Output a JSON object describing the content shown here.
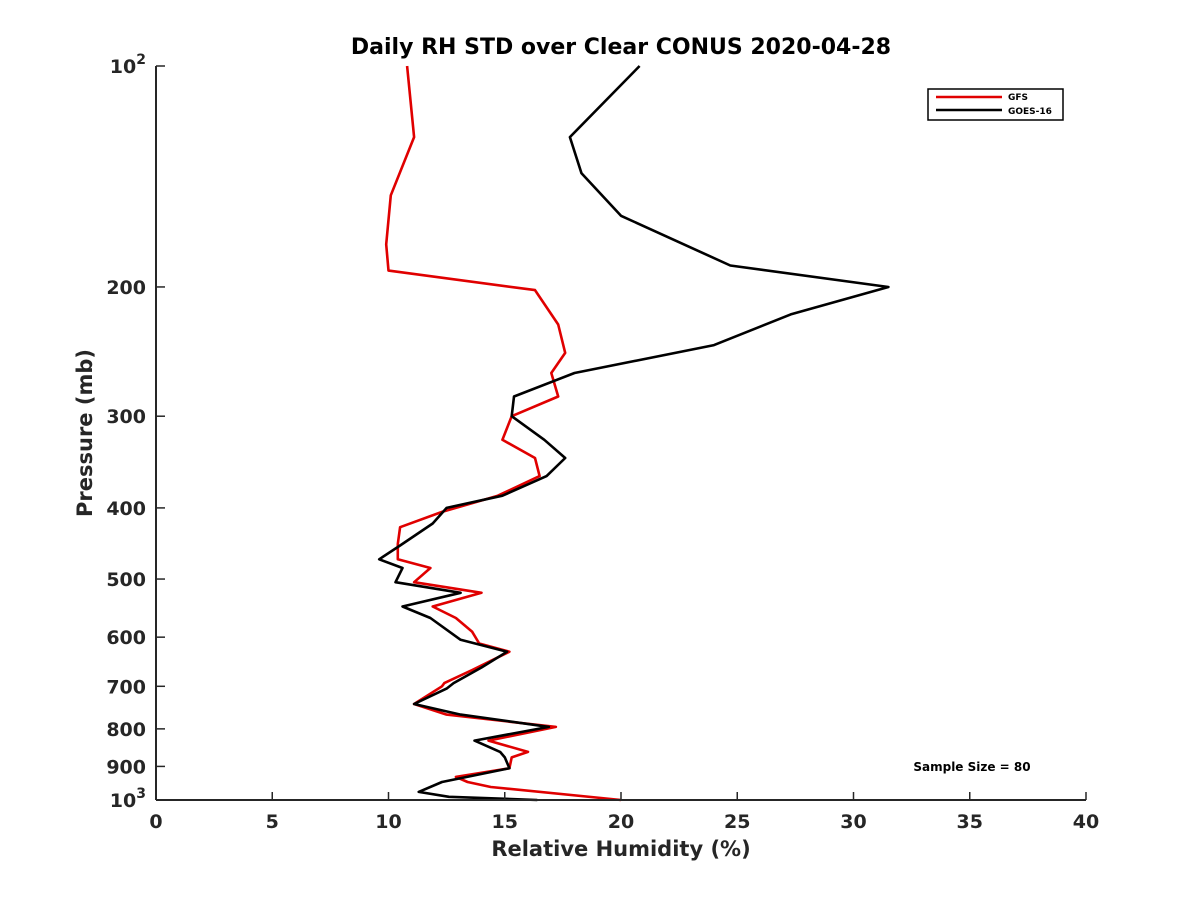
{
  "chart_data": {
    "type": "line",
    "title": "Daily RH STD over Clear CONUS 2020-04-28",
    "xlabel": "Relative Humidity (%)",
    "ylabel": "Pressure (mb)",
    "xlim": [
      0,
      40
    ],
    "ylim": [
      100,
      1000
    ],
    "y_scale": "log",
    "y_reversed": true,
    "x_ticks": [
      {
        "value": 0,
        "label": "0"
      },
      {
        "value": 5,
        "label": "5"
      },
      {
        "value": 10,
        "label": "10"
      },
      {
        "value": 15,
        "label": "15"
      },
      {
        "value": 20,
        "label": "20"
      },
      {
        "value": 25,
        "label": "25"
      },
      {
        "value": 30,
        "label": "30"
      },
      {
        "value": 35,
        "label": "35"
      },
      {
        "value": 40,
        "label": "40"
      }
    ],
    "y_ticks": [
      {
        "value": 100,
        "base": "10",
        "exp": "2"
      },
      {
        "value": 200,
        "label": "200"
      },
      {
        "value": 300,
        "label": "300"
      },
      {
        "value": 400,
        "label": "400"
      },
      {
        "value": 500,
        "label": "500"
      },
      {
        "value": 600,
        "label": "600"
      },
      {
        "value": 700,
        "label": "700"
      },
      {
        "value": 800,
        "label": "800"
      },
      {
        "value": 900,
        "label": "900"
      },
      {
        "value": 1000,
        "base": "10",
        "exp": "3"
      }
    ],
    "grid": false,
    "legend_position": "top-right",
    "annotation": "Sample Size = 80",
    "series": [
      {
        "name": "GFS",
        "color": "#e00000",
        "points": [
          [
            10.8,
            100
          ],
          [
            11.1,
            125
          ],
          [
            10.1,
            150
          ],
          [
            9.9,
            175
          ],
          [
            10.0,
            190
          ],
          [
            16.3,
            202
          ],
          [
            17.3,
            225
          ],
          [
            17.6,
            246
          ],
          [
            17.0,
            262
          ],
          [
            17.3,
            282
          ],
          [
            15.3,
            300
          ],
          [
            14.9,
            323
          ],
          [
            16.3,
            342
          ],
          [
            16.5,
            362
          ],
          [
            14.7,
            385
          ],
          [
            12.3,
            405
          ],
          [
            10.5,
            425
          ],
          [
            10.4,
            448
          ],
          [
            10.4,
            470
          ],
          [
            11.8,
            483
          ],
          [
            11.1,
            505
          ],
          [
            14.0,
            522
          ],
          [
            11.9,
            545
          ],
          [
            12.9,
            565
          ],
          [
            13.6,
            590
          ],
          [
            13.9,
            612
          ],
          [
            15.2,
            628
          ],
          [
            13.6,
            665
          ],
          [
            12.4,
            693
          ],
          [
            12.3,
            700
          ],
          [
            11.1,
            740
          ],
          [
            12.5,
            765
          ],
          [
            17.2,
            795
          ],
          [
            14.3,
            830
          ],
          [
            16.0,
            860
          ],
          [
            15.3,
            875
          ],
          [
            15.2,
            905
          ],
          [
            12.9,
            930
          ],
          [
            13.4,
            945
          ],
          [
            14.4,
            960
          ],
          [
            20.0,
            1000
          ]
        ]
      },
      {
        "name": "GOES-16",
        "color": "#000000",
        "points": [
          [
            20.8,
            100
          ],
          [
            17.8,
            125
          ],
          [
            18.3,
            140
          ],
          [
            20.0,
            160
          ],
          [
            24.7,
            187
          ],
          [
            31.5,
            200
          ],
          [
            27.3,
            218
          ],
          [
            24.0,
            240
          ],
          [
            18.0,
            262
          ],
          [
            15.4,
            282
          ],
          [
            15.3,
            300
          ],
          [
            16.7,
            323
          ],
          [
            17.6,
            342
          ],
          [
            16.8,
            362
          ],
          [
            14.9,
            385
          ],
          [
            12.5,
            400
          ],
          [
            11.9,
            420
          ],
          [
            10.5,
            450
          ],
          [
            9.6,
            470
          ],
          [
            10.6,
            483
          ],
          [
            10.3,
            505
          ],
          [
            13.1,
            522
          ],
          [
            10.6,
            545
          ],
          [
            11.8,
            565
          ],
          [
            13.1,
            605
          ],
          [
            15.1,
            628
          ],
          [
            14.0,
            660
          ],
          [
            12.8,
            693
          ],
          [
            12.5,
            705
          ],
          [
            11.1,
            740
          ],
          [
            13.1,
            765
          ],
          [
            16.9,
            795
          ],
          [
            13.7,
            830
          ],
          [
            14.8,
            860
          ],
          [
            15.0,
            875
          ],
          [
            15.2,
            905
          ],
          [
            12.3,
            945
          ],
          [
            11.3,
            975
          ],
          [
            12.6,
            990
          ],
          [
            16.4,
            1000
          ]
        ]
      }
    ]
  }
}
